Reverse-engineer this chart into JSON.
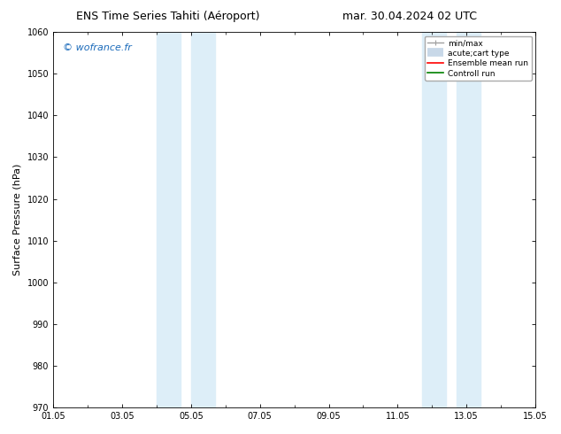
{
  "title_left": "ENS Time Series Tahiti (Aéroport)",
  "title_right": "mar. 30.04.2024 02 UTC",
  "ylabel": "Surface Pressure (hPa)",
  "ylim": [
    970,
    1060
  ],
  "yticks": [
    970,
    980,
    990,
    1000,
    1010,
    1020,
    1030,
    1040,
    1050,
    1060
  ],
  "xlim": [
    0,
    14
  ],
  "xtick_labels": [
    "01.05",
    "03.05",
    "05.05",
    "07.05",
    "09.05",
    "11.05",
    "13.05",
    "15.05"
  ],
  "xtick_positions": [
    0,
    2,
    4,
    6,
    8,
    10,
    12,
    14
  ],
  "shaded_bands": [
    {
      "xmin": 3.0,
      "xmax": 3.7
    },
    {
      "xmin": 4.0,
      "xmax": 4.7
    },
    {
      "xmin": 10.7,
      "xmax": 11.4
    },
    {
      "xmin": 11.7,
      "xmax": 12.4
    }
  ],
  "band_color": "#ddeef8",
  "band_alpha": 1.0,
  "watermark": "© wofrance.fr",
  "watermark_color": "#1a6aba",
  "legend_entries": [
    {
      "label": "min/max",
      "color": "#a0a0a0",
      "lw": 1.0
    },
    {
      "label": "acute;cart type",
      "color": "#c8d8e8",
      "lw": 7
    },
    {
      "label": "Ensemble mean run",
      "color": "#ff0000",
      "lw": 1.2
    },
    {
      "label": "Controll run",
      "color": "#008000",
      "lw": 1.2
    }
  ],
  "bg_color": "#ffffff",
  "plot_bg_color": "#ffffff",
  "title_fontsize": 9,
  "tick_fontsize": 7,
  "ylabel_fontsize": 8,
  "watermark_fontsize": 8,
  "legend_fontsize": 6.5
}
